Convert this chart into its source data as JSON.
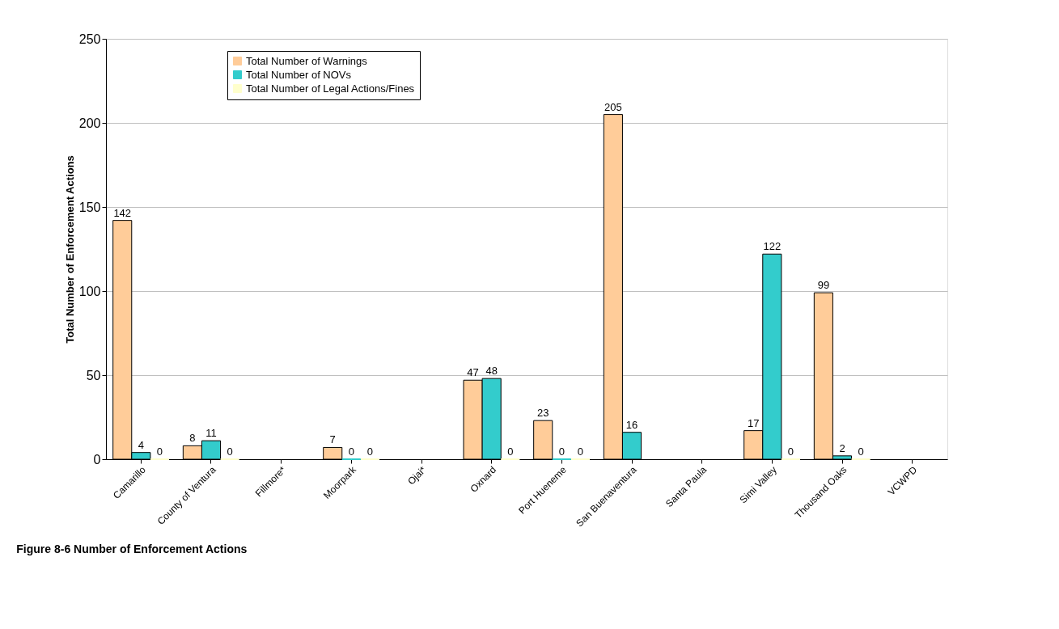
{
  "chart_data": {
    "type": "bar",
    "title": "Figure 8-6 Number of Enforcement Actions",
    "ylabel": "Total Number of Enforcement Actions",
    "categories": [
      "Camarillo",
      "County of Ventura",
      "Fillmore*",
      "Moorpark",
      "Ojai*",
      "Oxnard",
      "Port Hueneme",
      "San Buenaventura",
      "Santa Paula",
      "Simi Valley",
      "Thousand Oaks",
      "VCWPD"
    ],
    "series": [
      {
        "name": "Total Number of Warnings",
        "color": "#ffcc99",
        "values": [
          142,
          8,
          null,
          7,
          null,
          47,
          23,
          205,
          null,
          17,
          99,
          null
        ]
      },
      {
        "name": "Total Number of NOVs",
        "color": "#33cccc",
        "values": [
          4,
          11,
          null,
          0,
          null,
          48,
          0,
          16,
          null,
          122,
          2,
          null
        ]
      },
      {
        "name": "Total Number of Legal Actions/Fines",
        "color": "#ffffcc",
        "values": [
          0,
          0,
          null,
          0,
          null,
          0,
          0,
          null,
          null,
          0,
          0,
          null
        ]
      }
    ],
    "ylim": [
      0,
      250
    ],
    "yticks": [
      0,
      50,
      100,
      150,
      200,
      250
    ],
    "grid": "y",
    "legend": "top left",
    "data_labels": true
  }
}
